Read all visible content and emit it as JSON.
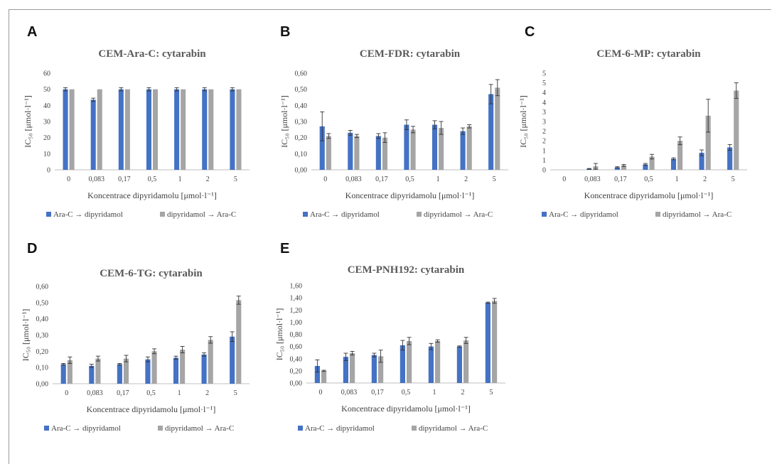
{
  "colors": {
    "series_a": "#4472C4",
    "series_b": "#A5A5A5",
    "axis": "#bfbfbf",
    "text": "#404040"
  },
  "chart_data": [
    {
      "panel": "A",
      "type": "bar",
      "title": "CEM-Ara-C: cytarabin",
      "xlabel": "Koncentrace dipyridamolu [μmol·l⁻¹]",
      "ylabel": "IC₅₀ [μmol·l⁻¹]",
      "categories": [
        "0",
        "0,083",
        "0,17",
        "0,5",
        "1",
        "2",
        "5"
      ],
      "ylim": [
        0,
        60
      ],
      "yticks": [
        "0",
        "10",
        "20",
        "30",
        "40",
        "50",
        "60"
      ],
      "series": [
        {
          "name": "Ara-C → dipyridamol",
          "values": [
            50,
            43.5,
            50,
            50,
            50,
            50,
            50
          ],
          "errors": [
            1,
            1,
            1,
            1,
            1,
            1,
            1
          ]
        },
        {
          "name": "dipyridamol → Ara-C",
          "values": [
            50,
            50,
            50,
            50,
            50,
            50,
            50
          ],
          "errors": [
            0,
            0,
            0,
            0,
            0,
            0,
            0
          ]
        }
      ],
      "legend": "bottom"
    },
    {
      "panel": "B",
      "type": "bar",
      "title": "CEM-FDR: cytarabin",
      "xlabel": "Koncentrace dipyridamolu [μmol·l⁻¹]",
      "ylabel": "IC₅₀ [μmol·l⁻¹]",
      "categories": [
        "0",
        "0,083",
        "0,17",
        "0,5",
        "1",
        "2",
        "5"
      ],
      "ylim": [
        0,
        0.6
      ],
      "yticks": [
        "0,00",
        "0,10",
        "0,20",
        "0,30",
        "0,40",
        "0,50",
        "0,60"
      ],
      "series": [
        {
          "name": "Ara-C → dipyridamol",
          "values": [
            0.27,
            0.23,
            0.21,
            0.28,
            0.28,
            0.24,
            0.47
          ],
          "errors": [
            0.09,
            0.015,
            0.015,
            0.03,
            0.025,
            0.02,
            0.06
          ]
        },
        {
          "name": "dipyridamol → Ara-C",
          "values": [
            0.21,
            0.21,
            0.2,
            0.25,
            0.26,
            0.27,
            0.51
          ],
          "errors": [
            0.015,
            0.01,
            0.03,
            0.02,
            0.04,
            0.01,
            0.05
          ]
        }
      ],
      "legend": "bottom"
    },
    {
      "panel": "C",
      "type": "bar",
      "title": "CEM-6-MP: cytarabin",
      "xlabel": "Koncentrace dipyridamolu [μmol·l⁻¹]",
      "ylabel": "IC₅₀ [μmol·l⁻¹]",
      "categories": [
        "0",
        "0,083",
        "0,17",
        "0,5",
        "1",
        "2",
        "5"
      ],
      "ylim": [
        0,
        5
      ],
      "yticks": [
        "0",
        "1",
        "1",
        "2",
        "2",
        "3",
        "3",
        "4",
        "4",
        "5",
        "5"
      ],
      "series": [
        {
          "name": "Ara-C → dipyridamol",
          "values": [
            0,
            0.05,
            0.13,
            0.28,
            0.57,
            0.88,
            1.16
          ],
          "errors": [
            0,
            0.02,
            0.03,
            0.05,
            0.05,
            0.15,
            0.15
          ]
        },
        {
          "name": "dipyridamol → Ara-C",
          "values": [
            0,
            0.18,
            0.23,
            0.68,
            1.5,
            2.8,
            4.1
          ],
          "errors": [
            0,
            0.15,
            0.05,
            0.12,
            0.2,
            0.85,
            0.4
          ]
        }
      ],
      "legend": "bottom"
    },
    {
      "panel": "D",
      "type": "bar",
      "title": "CEM-6-TG: cytarabin",
      "xlabel": "Koncentrace dipyridamolu [μmol·l⁻¹]",
      "ylabel": "IC₅₀ [μmol·l⁻¹]",
      "categories": [
        "0",
        "0,083",
        "0,17",
        "0,5",
        "1",
        "2",
        "5"
      ],
      "ylim": [
        0,
        0.6
      ],
      "yticks": [
        "0,00",
        "0,10",
        "0,20",
        "0,30",
        "0,40",
        "0,50",
        "0,60"
      ],
      "series": [
        {
          "name": "Ara-C → dipyridamol",
          "values": [
            0.12,
            0.11,
            0.12,
            0.15,
            0.16,
            0.18,
            0.29
          ],
          "errors": [
            0.005,
            0.01,
            0.005,
            0.015,
            0.01,
            0.01,
            0.03
          ]
        },
        {
          "name": "dipyridamol → Ara-C",
          "values": [
            0.145,
            0.155,
            0.155,
            0.2,
            0.21,
            0.27,
            0.515
          ],
          "errors": [
            0.02,
            0.015,
            0.02,
            0.015,
            0.02,
            0.02,
            0.025
          ]
        }
      ],
      "legend": "bottom"
    },
    {
      "panel": "E",
      "type": "bar",
      "title": "CEM-PNH192: cytarabin",
      "xlabel": "Koncentrace dipyridamolu [μmol·l⁻¹]",
      "ylabel": "IC₅₀ [μmol·l⁻¹]",
      "categories": [
        "0",
        "0,083",
        "0,17",
        "0,5",
        "1",
        "2",
        "5"
      ],
      "ylim": [
        0,
        1.6
      ],
      "yticks": [
        "0,00",
        "0,20",
        "0,40",
        "0,60",
        "0,80",
        "1,00",
        "1,20",
        "1,40",
        "1,60"
      ],
      "series": [
        {
          "name": "Ara-C → dipyridamol",
          "values": [
            0.28,
            0.43,
            0.46,
            0.62,
            0.6,
            0.6,
            1.32
          ],
          "errors": [
            0.1,
            0.06,
            0.03,
            0.08,
            0.05,
            0.01,
            0.01
          ]
        },
        {
          "name": "dipyridamol → Ara-C",
          "values": [
            0.2,
            0.49,
            0.44,
            0.69,
            0.69,
            0.7,
            1.35
          ],
          "errors": [
            0.01,
            0.03,
            0.1,
            0.06,
            0.02,
            0.05,
            0.04
          ]
        }
      ],
      "legend": "bottom"
    }
  ]
}
